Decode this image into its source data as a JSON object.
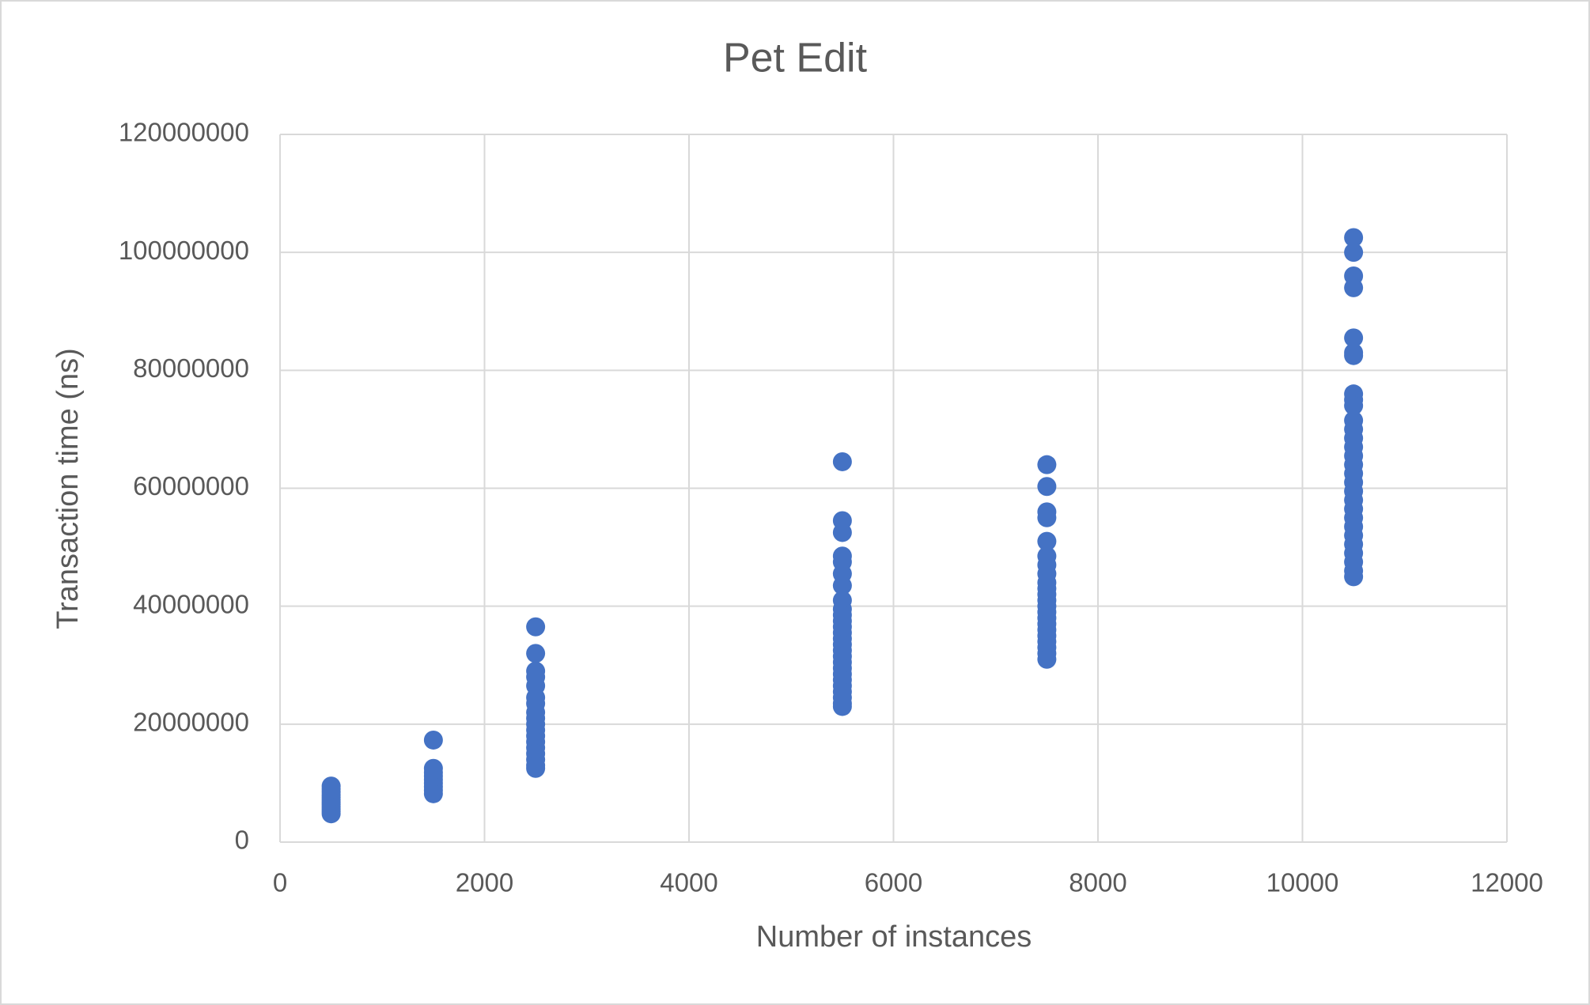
{
  "chart_data": {
    "type": "scatter",
    "title": "Pet Edit",
    "x_label": "Number of instances",
    "y_label": "Transaction time (ns)",
    "x": [
      500,
      500,
      500,
      500,
      500,
      500,
      500,
      500,
      500,
      500,
      500,
      500,
      1500,
      1500,
      1500,
      1500,
      1500,
      1500,
      1500,
      1500,
      1500,
      2500,
      2500,
      2500,
      2500,
      2500,
      2500,
      2500,
      2500,
      2500,
      2500,
      2500,
      2500,
      2500,
      2500,
      2500,
      2500,
      2500,
      2500,
      5500,
      5500,
      5500,
      5500,
      5500,
      5500,
      5500,
      5500,
      5500,
      5500,
      5500,
      5500,
      5500,
      5500,
      5500,
      5500,
      5500,
      5500,
      5500,
      5500,
      5500,
      5500,
      5500,
      5500,
      5500,
      5500,
      7500,
      7500,
      7500,
      7500,
      7500,
      7500,
      7500,
      7500,
      7500,
      7500,
      7500,
      7500,
      7500,
      7500,
      7500,
      7500,
      7500,
      7500,
      7500,
      7500,
      7500,
      7500,
      10500,
      10500,
      10500,
      10500,
      10500,
      10500,
      10500,
      10500,
      10500,
      10500,
      10500,
      10500,
      10500,
      10500,
      10500,
      10500,
      10500,
      10500,
      10500,
      10500,
      10500,
      10500,
      10500,
      10500,
      10500,
      10500,
      10500,
      10500,
      10500
    ],
    "values": [
      4800000,
      5200000,
      5600000,
      6000000,
      6400000,
      6800000,
      7200000,
      7600000,
      8000000,
      8500000,
      9000000,
      9500000,
      17300000,
      12500000,
      11800000,
      11200000,
      10600000,
      10000000,
      9400000,
      8800000,
      8200000,
      36500000,
      32000000,
      29000000,
      28000000,
      26500000,
      24500000,
      23500000,
      22000000,
      21000000,
      20000000,
      19000000,
      18000000,
      17000000,
      16000000,
      15000000,
      14000000,
      13000000,
      12500000,
      64500000,
      54500000,
      52500000,
      48500000,
      47500000,
      45500000,
      43500000,
      41000000,
      39500000,
      38500000,
      37500000,
      36500000,
      35500000,
      34500000,
      33500000,
      32500000,
      31500000,
      30500000,
      29500000,
      28500000,
      27500000,
      26500000,
      25500000,
      24500000,
      23500000,
      23000000,
      64000000,
      60300000,
      56000000,
      55000000,
      51000000,
      48500000,
      47000000,
      45500000,
      44000000,
      43000000,
      42000000,
      41000000,
      40000000,
      39000000,
      38000000,
      37000000,
      36000000,
      35000000,
      34000000,
      33000000,
      32000000,
      31000000,
      102500000,
      100000000,
      96000000,
      94000000,
      85500000,
      83000000,
      82500000,
      76000000,
      75000000,
      74000000,
      71500000,
      70000000,
      68500000,
      67000000,
      65500000,
      64000000,
      62500000,
      61000000,
      59500000,
      58000000,
      56500000,
      55000000,
      53500000,
      52000000,
      50500000,
      49000000,
      47500000,
      46000000,
      45000000
    ],
    "color": "#4472c4",
    "xlim": [
      0,
      12000
    ],
    "xticks": [
      0,
      2000,
      4000,
      6000,
      8000,
      10000,
      12000
    ],
    "ylim": [
      0,
      120000000
    ],
    "yticks": [
      0,
      20000000,
      40000000,
      60000000,
      80000000,
      100000000,
      120000000
    ],
    "grid": true
  }
}
